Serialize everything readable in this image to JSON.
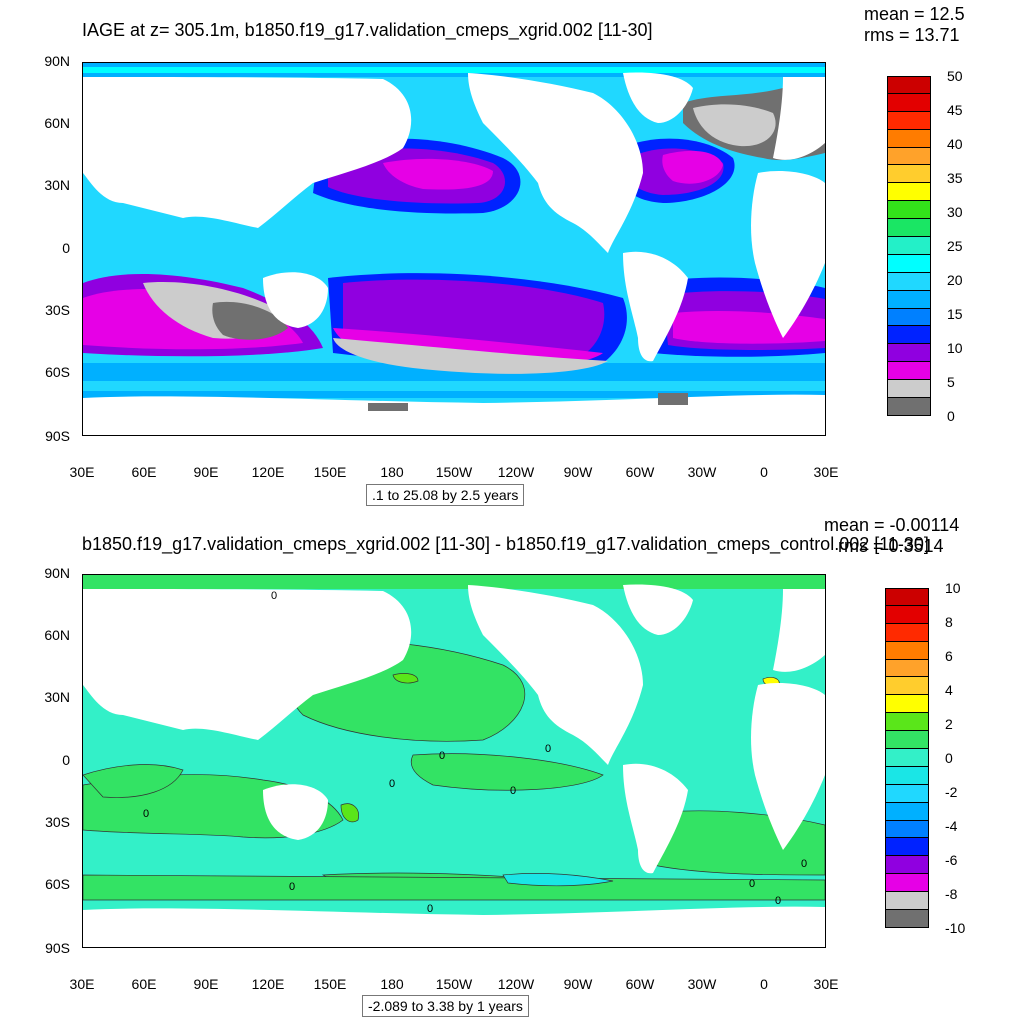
{
  "panel1": {
    "title": "IAGE at z= 305.1m, b1850.f19_g17.validation_cmeps_xgrid.002 [11-30]",
    "mean": "mean = 12.5",
    "rms": "rms = 13.71",
    "caption": ".1 to 25.08 by 2.5 years",
    "colorbar": {
      "labels": [
        "50",
        "45",
        "40",
        "35",
        "30",
        "25",
        "20",
        "15",
        "10",
        "5",
        "0"
      ],
      "colors": [
        "#cc0000",
        "#e30000",
        "#ff2a00",
        "#ff7c00",
        "#ffa22a",
        "#ffcd2d",
        "#ffff00",
        "#33e31a",
        "#1ae664",
        "#23f0c8",
        "#00ffff",
        "#20d8ff",
        "#00b0ff",
        "#0080ff",
        "#0022ff",
        "#9000e0",
        "#e600e6",
        "#cccccc",
        "#707070"
      ]
    }
  },
  "panel2": {
    "title": "b1850.f19_g17.validation_cmeps_xgrid.002 [11-30] - b1850.f19_g17.validation_cmeps_control.002 [11-30]",
    "mean": "mean = -0.00114",
    "rms": "rms = 0.3514",
    "caption": "-2.089 to 3.38 by 1 years",
    "contour_labels": [
      "0",
      "0",
      "0",
      "0",
      "0",
      "0",
      "0",
      "0",
      "0",
      "0",
      "0"
    ],
    "colorbar": {
      "labels": [
        "10",
        "8",
        "6",
        "4",
        "2",
        "0",
        "-2",
        "-4",
        "-6",
        "-8",
        "-10"
      ],
      "colors": [
        "#cc0000",
        "#e30000",
        "#ff2a00",
        "#ff7c00",
        "#ffa22a",
        "#ffcd2d",
        "#ffff00",
        "#5ae61a",
        "#33e364",
        "#33f0c8",
        "#1ae6e6",
        "#20d8ff",
        "#00b0ff",
        "#0080ff",
        "#0022ff",
        "#9000e0",
        "#e600e6",
        "#cccccc",
        "#707070"
      ]
    }
  },
  "axes": {
    "y_labels": [
      "90N",
      "60N",
      "30N",
      "0",
      "30S",
      "60S",
      "90S"
    ],
    "x_labels": [
      "30E",
      "60E",
      "90E",
      "120E",
      "150E",
      "180",
      "150W",
      "120W",
      "90W",
      "60W",
      "30W",
      "0",
      "30E"
    ]
  }
}
